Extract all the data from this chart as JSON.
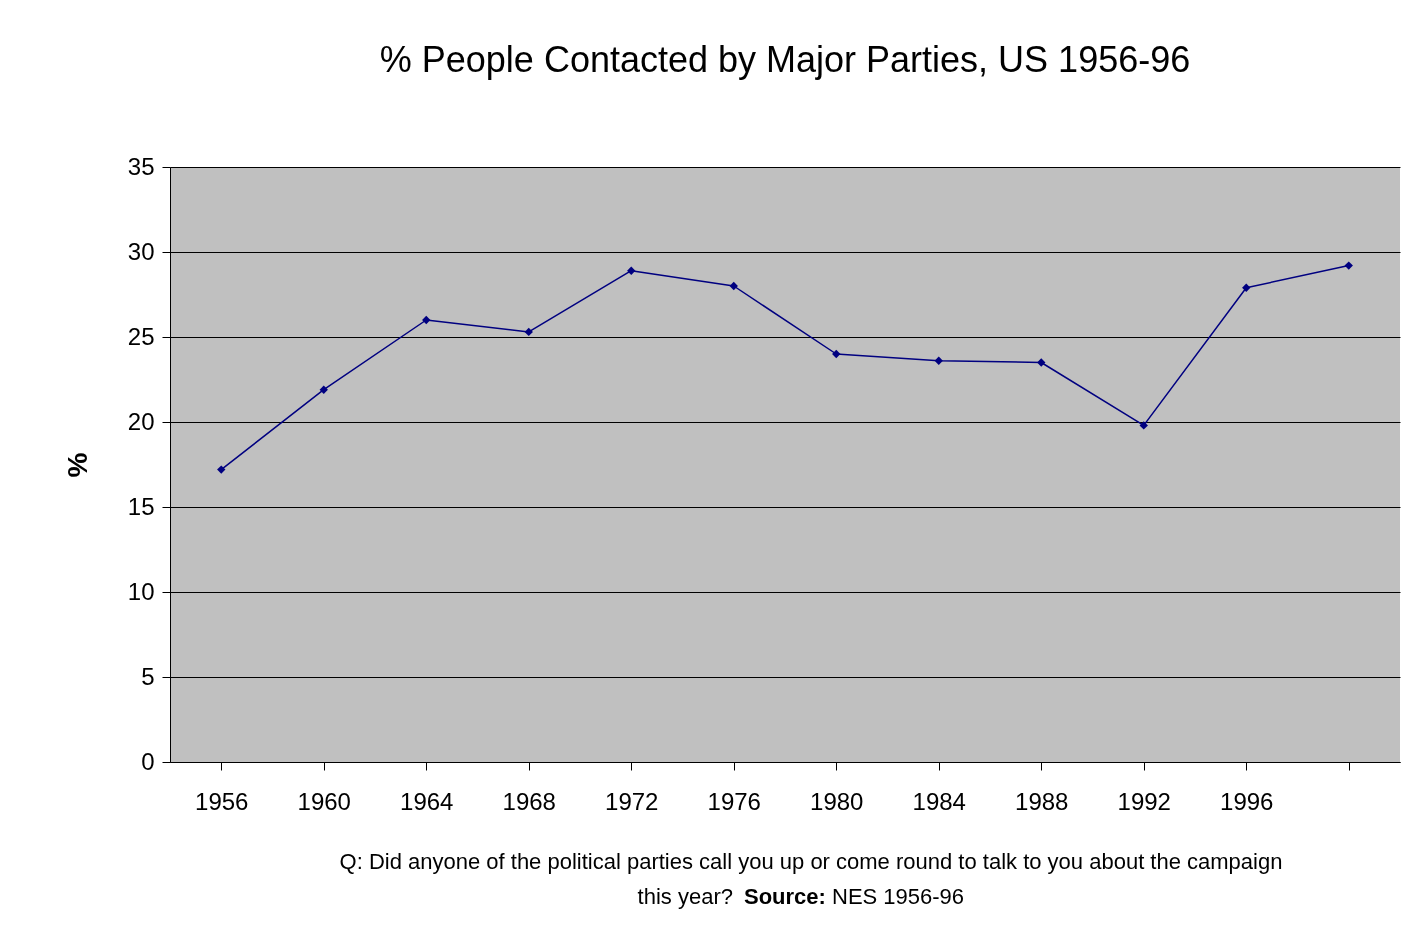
{
  "chart_data": {
    "type": "line",
    "title": "% People Contacted by Major Parties, US 1956-96",
    "ylabel": "%",
    "categories": [
      "1956",
      "1960",
      "1964",
      "1968",
      "1972",
      "1976",
      "1980",
      "1984",
      "1988",
      "1992",
      "1996",
      null
    ],
    "series": [
      {
        "color": "#000080",
        "values": [
          17.2,
          21.9,
          26.0,
          25.3,
          28.9,
          28.0,
          24.0,
          23.6,
          23.5,
          19.8,
          27.9,
          29.2
        ]
      }
    ],
    "ylim": [
      0,
      35
    ],
    "yticks": [
      0,
      5,
      10,
      15,
      20,
      25,
      30,
      35
    ],
    "grid": "y",
    "marker": "diamond",
    "line_style": "solid",
    "annotations": [
      "Q: Did anyone of the political parties call you up or come round to talk to you about the campaign this year?",
      "Source: NES 1956-96"
    ]
  }
}
